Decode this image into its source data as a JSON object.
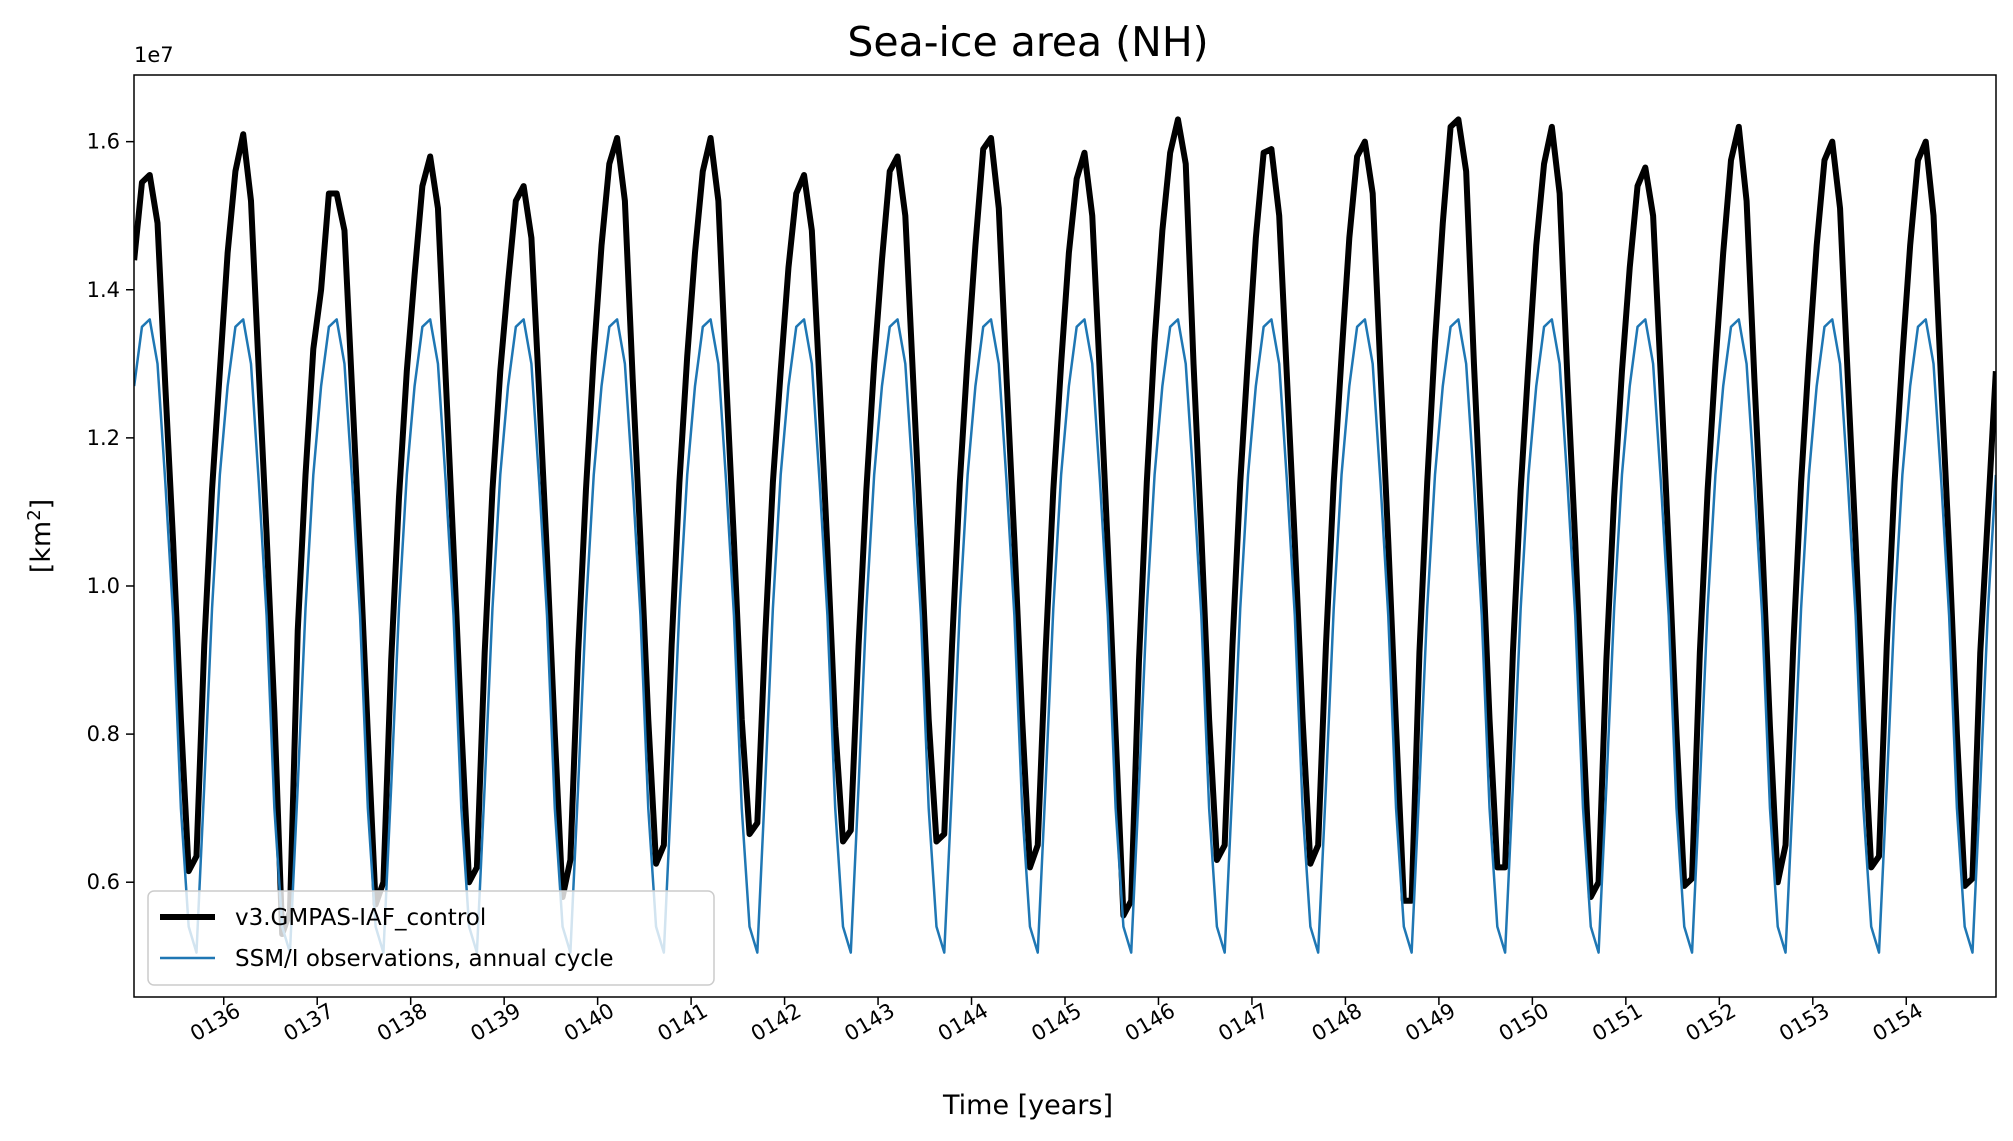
{
  "chart_data": {
    "type": "line",
    "title": "Sea-ice area (NH)",
    "xlabel": "Time [years]",
    "ylabel_main": "[km",
    "ylabel_sup": "2",
    "ylabel_end": "]",
    "offset_text": "1e7",
    "y_scale": 10000000,
    "xlim": [
      135.04,
      154.96
    ],
    "ylim": [
      4.45,
      16.9
    ],
    "y_ticks": [
      6,
      8,
      10,
      12,
      14,
      16
    ],
    "y_tick_labels": [
      "0.6",
      "0.8",
      "1.0",
      "1.2",
      "1.4",
      "1.6"
    ],
    "x_ticks": [
      "0136",
      "0137",
      "0138",
      "0139",
      "0140",
      "0141",
      "0142",
      "0143",
      "0144",
      "0145",
      "0146",
      "0147",
      "0148",
      "0149",
      "0150",
      "0151",
      "0152",
      "0153",
      "0154"
    ],
    "x_tick_first_year": 136,
    "start_year": 135,
    "legend_position": "lower-left",
    "observation_cycle": [
      12.7,
      13.5,
      13.6,
      13.0,
      11.4,
      9.6,
      7.0,
      5.4,
      5.05,
      7.3,
      9.7,
      11.5
    ],
    "series": [
      {
        "name": "v3.GMPAS-IAF_control",
        "color": "#000000",
        "style": "thick",
        "values": [
          14.4,
          15.45,
          15.55,
          14.9,
          12.7,
          10.6,
          8.2,
          6.15,
          6.35,
          9.2,
          11.3,
          12.9,
          14.5,
          15.6,
          16.1,
          15.2,
          12.9,
          10.7,
          8.3,
          5.3,
          5.6,
          9.4,
          11.5,
          13.2,
          14.0,
          15.3,
          15.3,
          14.8,
          12.6,
          10.4,
          8.0,
          5.7,
          6.0,
          9.0,
          11.2,
          12.9,
          14.2,
          15.4,
          15.8,
          15.1,
          12.8,
          10.5,
          8.1,
          6.0,
          6.2,
          9.1,
          11.3,
          12.9,
          14.1,
          15.2,
          15.4,
          14.7,
          12.6,
          10.4,
          8.0,
          5.8,
          6.3,
          9.1,
          11.3,
          13.1,
          14.6,
          15.7,
          16.05,
          15.2,
          12.8,
          10.6,
          8.2,
          6.25,
          6.5,
          9.2,
          11.4,
          13.1,
          14.5,
          15.6,
          16.05,
          15.2,
          12.8,
          10.6,
          8.2,
          6.65,
          6.8,
          9.3,
          11.4,
          12.9,
          14.3,
          15.3,
          15.55,
          14.8,
          12.7,
          10.5,
          8.1,
          6.55,
          6.7,
          9.2,
          11.3,
          13.0,
          14.4,
          15.6,
          15.8,
          15.0,
          12.8,
          10.6,
          8.2,
          6.55,
          6.65,
          9.2,
          11.4,
          13.1,
          14.6,
          15.9,
          16.05,
          15.1,
          12.8,
          10.6,
          8.2,
          6.2,
          6.5,
          9.1,
          11.3,
          13.0,
          14.5,
          15.5,
          15.85,
          15.0,
          12.8,
          10.5,
          8.0,
          5.55,
          5.75,
          9.0,
          11.4,
          13.3,
          14.8,
          15.85,
          16.3,
          15.7,
          13.0,
          10.7,
          8.2,
          6.3,
          6.5,
          9.2,
          11.4,
          13.1,
          14.7,
          15.85,
          15.9,
          15.0,
          12.8,
          10.6,
          8.2,
          6.25,
          6.5,
          9.2,
          11.4,
          13.1,
          14.7,
          15.8,
          16.0,
          15.3,
          12.9,
          10.6,
          8.1,
          5.75,
          5.75,
          9.1,
          11.4,
          13.3,
          14.9,
          16.2,
          16.3,
          15.6,
          13.0,
          10.7,
          8.2,
          6.2,
          6.2,
          9.1,
          11.3,
          13.0,
          14.6,
          15.7,
          16.2,
          15.3,
          12.8,
          10.6,
          8.1,
          5.8,
          6.0,
          9.0,
          11.2,
          12.9,
          14.3,
          15.4,
          15.65,
          15.0,
          12.8,
          10.5,
          8.0,
          5.95,
          6.05,
          9.1,
          11.3,
          13.0,
          14.5,
          15.75,
          16.2,
          15.2,
          12.8,
          10.6,
          8.1,
          6.0,
          6.5,
          9.2,
          11.4,
          13.1,
          14.6,
          15.75,
          16.0,
          15.1,
          12.8,
          10.6,
          8.2,
          6.2,
          6.35,
          9.2,
          11.4,
          13.1,
          14.6,
          15.75,
          16.0,
          15.0,
          12.7,
          10.5,
          8.0,
          5.95,
          6.05,
          9.1,
          11.0,
          12.9
        ]
      },
      {
        "name": "SSM/I observations, annual cycle",
        "color": "#1f77b4",
        "style": "thin",
        "values": []
      }
    ]
  }
}
